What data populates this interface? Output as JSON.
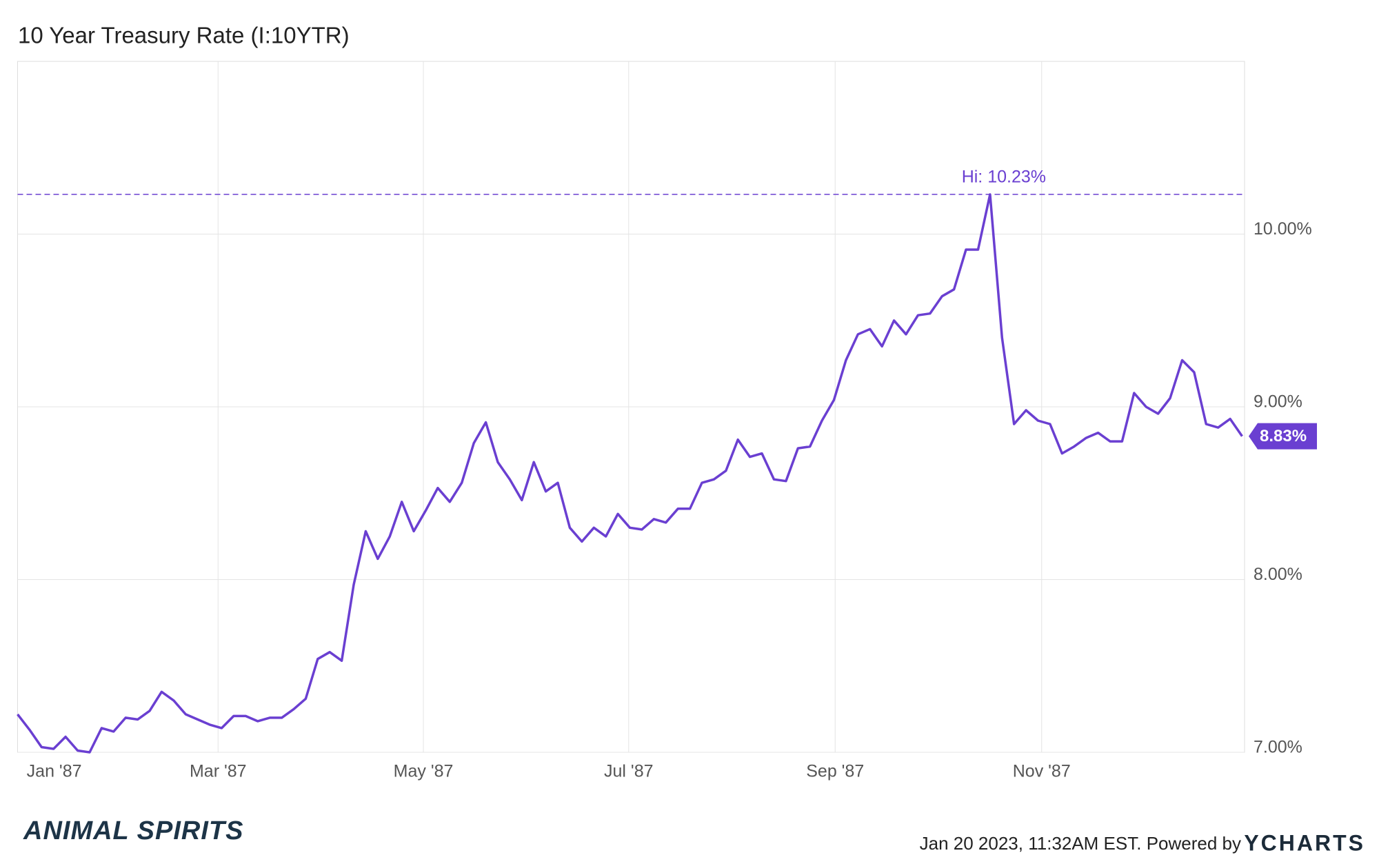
{
  "chart_data": {
    "type": "line",
    "title": "10 Year Treasury Rate (I:10YTR)",
    "series": [
      {
        "name": "10 Year Treasury Rate",
        "color": "#6a3fd1",
        "values": [
          7.22,
          7.13,
          7.03,
          7.02,
          7.09,
          7.01,
          7.0,
          7.14,
          7.12,
          7.2,
          7.19,
          7.24,
          7.35,
          7.3,
          7.22,
          7.19,
          7.16,
          7.14,
          7.21,
          7.21,
          7.18,
          7.2,
          7.2,
          7.25,
          7.31,
          7.54,
          7.58,
          7.53,
          7.97,
          8.28,
          8.12,
          8.25,
          8.45,
          8.28,
          8.4,
          8.53,
          8.45,
          8.56,
          8.79,
          8.91,
          8.68,
          8.58,
          8.46,
          8.68,
          8.51,
          8.56,
          8.3,
          8.22,
          8.3,
          8.25,
          8.38,
          8.3,
          8.29,
          8.35,
          8.33,
          8.41,
          8.41,
          8.56,
          8.58,
          8.63,
          8.81,
          8.71,
          8.73,
          8.58,
          8.57,
          8.76,
          8.77,
          8.92,
          9.04,
          9.27,
          9.42,
          9.45,
          9.35,
          9.5,
          9.42,
          9.53,
          9.54,
          9.64,
          9.68,
          9.91,
          9.91,
          10.23,
          9.4,
          8.9,
          8.98,
          8.92,
          8.9,
          8.73,
          8.77,
          8.82,
          8.85,
          8.8,
          8.8,
          9.08,
          9.0,
          8.96,
          9.05,
          9.27,
          9.2,
          8.9,
          8.88,
          8.93,
          8.83
        ]
      }
    ],
    "xlim": [
      0,
      102.2
    ],
    "xticks": [
      {
        "value": 3.05,
        "label": "Jan '87"
      },
      {
        "value": 16.7,
        "label": "Mar '87"
      },
      {
        "value": 33.8,
        "label": "May '87"
      },
      {
        "value": 50.9,
        "label": "Jul '87"
      },
      {
        "value": 68.1,
        "label": "Sep '87"
      },
      {
        "value": 85.3,
        "label": "Nov '87"
      }
    ],
    "ylim": [
      7,
      11
    ],
    "yticks": [
      {
        "value": 7,
        "label": "7.00%"
      },
      {
        "value": 8,
        "label": "8.00%"
      },
      {
        "value": 9,
        "label": "9.00%"
      },
      {
        "value": 10,
        "label": "10.00%"
      }
    ],
    "grid": true,
    "hi_marker": {
      "text": "Hi: 10.23%",
      "value": 10.23
    },
    "last_marker": {
      "text": "8.83%",
      "value": 8.83
    },
    "footer": {
      "timestamp": "Jan 20 2023, 11:32AM EST. Powered by",
      "brand": "YCHARTS",
      "logo": "ANIMAL SPIRITS"
    }
  }
}
